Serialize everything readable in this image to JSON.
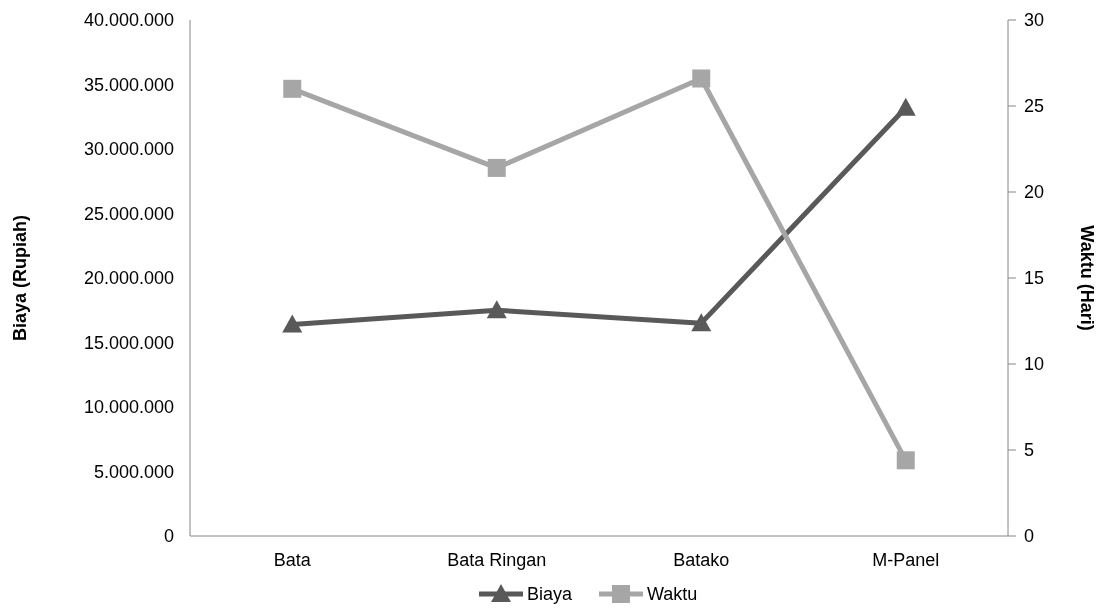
{
  "chart_data": {
    "type": "line",
    "categories": [
      "Bata",
      "Bata Ringan",
      "Batako",
      "M-Panel"
    ],
    "ylabel": "Biaya (Rupiah)",
    "y2label": "Waktu (Hari)",
    "ylim": [
      0,
      40000000
    ],
    "yticks": [
      {
        "value": 0,
        "label": "0"
      },
      {
        "value": 5000000,
        "label": "5.000.000"
      },
      {
        "value": 10000000,
        "label": "10.000.000"
      },
      {
        "value": 15000000,
        "label": "15.000.000"
      },
      {
        "value": 20000000,
        "label": "20.000.000"
      },
      {
        "value": 25000000,
        "label": "25.000.000"
      },
      {
        "value": 30000000,
        "label": "30.000.000"
      },
      {
        "value": 35000000,
        "label": "35.000.000"
      },
      {
        "value": 40000000,
        "label": "40.000.000"
      }
    ],
    "y2lim": [
      0,
      30
    ],
    "y2ticks": [
      0,
      5,
      10,
      15,
      20,
      25,
      30
    ],
    "series": [
      {
        "name": "Biaya",
        "color": "#595959",
        "marker": "triangle",
        "values": [
          16400000,
          17500000,
          16500000,
          33200000
        ]
      },
      {
        "name": "Waktu",
        "color": "#a6a6a6",
        "marker": "square",
        "axis": "y2",
        "values": [
          26,
          21.4,
          26.6,
          4.4
        ]
      }
    ],
    "legend": "bottom",
    "grid": false
  }
}
